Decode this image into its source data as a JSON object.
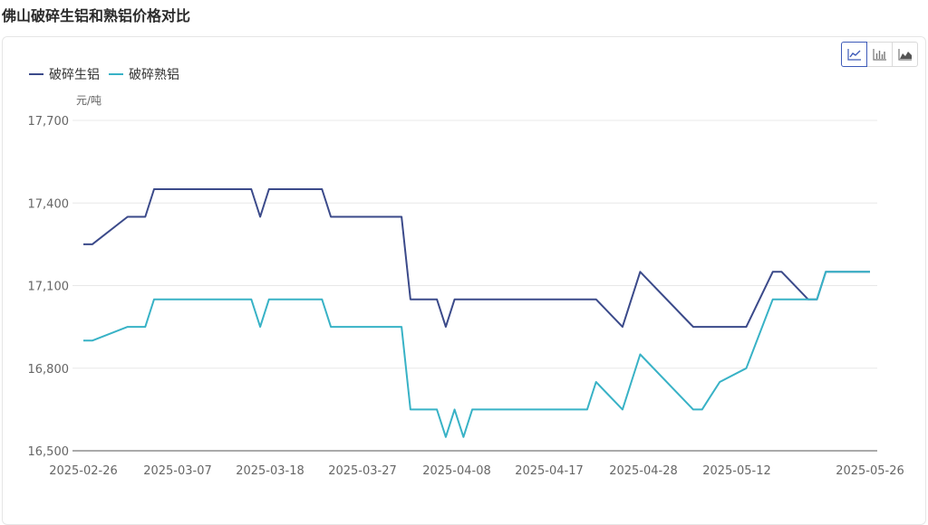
{
  "title": "佛山破碎生铝和熟铝价格对比",
  "toolbar": {
    "buttons": [
      {
        "icon": "line-chart-icon",
        "active": true
      },
      {
        "icon": "bar-chart-icon",
        "active": false
      },
      {
        "icon": "area-chart-icon",
        "active": false
      }
    ]
  },
  "chart_data": {
    "type": "line",
    "ylabel": "元/吨",
    "ylim": [
      16500,
      17700
    ],
    "yticks": [
      16500,
      16800,
      17100,
      17400,
      17700
    ],
    "ytick_labels": [
      "16,500",
      "16,800",
      "17,100",
      "17,400",
      "17,700"
    ],
    "xlim": [
      "2025-02-26",
      "2025-05-26"
    ],
    "xtick_labels": [
      "2025-02-26",
      "2025-03-07",
      "2025-03-18",
      "2025-03-27",
      "2025-04-08",
      "2025-04-17",
      "2025-04-28",
      "2025-05-12",
      "2025-05-26"
    ],
    "grid": true,
    "legend_position": "top-left",
    "x": [
      "2025-02-26",
      "2025-02-27",
      "2025-03-03",
      "2025-03-04",
      "2025-03-05",
      "2025-03-06",
      "2025-03-17",
      "2025-03-18",
      "2025-03-19",
      "2025-03-24",
      "2025-03-25",
      "2025-03-26",
      "2025-04-03",
      "2025-04-04",
      "2025-04-07",
      "2025-04-08",
      "2025-04-09",
      "2025-04-10",
      "2025-04-11",
      "2025-04-14",
      "2025-04-24",
      "2025-04-25",
      "2025-04-28",
      "2025-04-30",
      "2025-05-06",
      "2025-05-07",
      "2025-05-08",
      "2025-05-09",
      "2025-05-12",
      "2025-05-15",
      "2025-05-16",
      "2025-05-19",
      "2025-05-20",
      "2025-05-21",
      "2025-05-22",
      "2025-05-23",
      "2025-05-26"
    ],
    "series": [
      {
        "name": "破碎生铝",
        "color": "#3b4a8a",
        "values": [
          17250,
          17250,
          17350,
          17350,
          17350,
          17450,
          17450,
          17350,
          17450,
          17450,
          17450,
          17350,
          17350,
          17050,
          17050,
          16950,
          17050,
          17050,
          17050,
          17050,
          17050,
          17050,
          16950,
          17150,
          16950,
          16950,
          16950,
          16950,
          16950,
          17150,
          17150,
          17050,
          17050,
          17150,
          17150,
          17150,
          17150
        ]
      },
      {
        "name": "破碎熟铝",
        "color": "#38b2c6",
        "values": [
          16900,
          16900,
          16950,
          16950,
          16950,
          17050,
          17050,
          16950,
          17050,
          17050,
          17050,
          16950,
          16950,
          16650,
          16650,
          16550,
          16650,
          16550,
          16650,
          16650,
          16650,
          16750,
          16650,
          16850,
          16650,
          16650,
          16700,
          16750,
          16800,
          17050,
          17050,
          17050,
          17050,
          17150,
          17150,
          17150,
          17150
        ]
      }
    ]
  }
}
